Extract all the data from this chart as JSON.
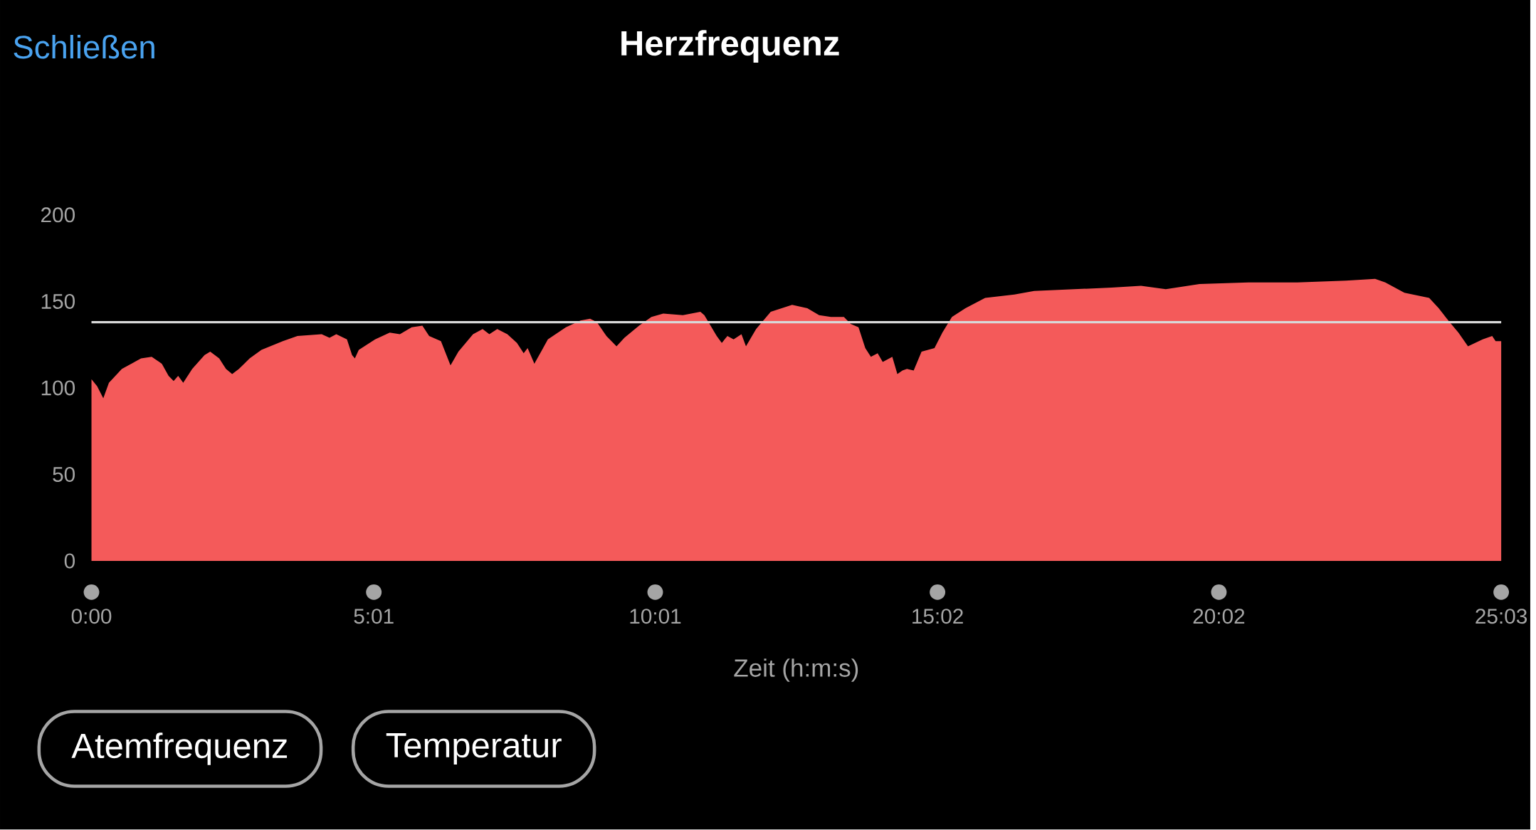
{
  "chart_data": {
    "type": "area",
    "title": "Herzfrequenz",
    "xlabel": "Zeit (h:m:s)",
    "annotations": [
      "Schließen",
      "Atemfrequenz",
      "Temperatur"
    ],
    "color": "#f45a5a",
    "x": [
      0,
      0.1,
      0.21,
      0.31,
      0.54,
      0.88,
      1.07,
      1.25,
      1.37,
      1.46,
      1.54,
      1.63,
      1.79,
      2.01,
      2.11,
      2.27,
      2.39,
      2.5,
      2.62,
      2.81,
      3.02,
      3.4,
      3.66,
      4.09,
      4.23,
      4.35,
      4.54,
      4.63,
      4.68,
      4.75,
      5.04,
      5.3,
      5.48,
      5.69,
      5.88,
      6.0,
      6.21,
      6.38,
      6.52,
      6.78,
      6.95,
      7.07,
      7.21,
      7.39,
      7.56,
      7.68,
      7.75,
      7.87,
      8.11,
      8.43,
      8.69,
      8.86,
      8.98,
      9.15,
      9.33,
      9.47,
      9.73,
      9.95,
      10.16,
      10.51,
      10.82,
      10.89,
      11.11,
      11.2,
      11.3,
      11.41,
      11.55,
      11.63,
      11.81,
      12.07,
      12.45,
      12.72,
      12.93,
      13.14,
      13.37,
      13.49,
      13.63,
      13.75,
      13.85,
      13.97,
      14.06,
      14.23,
      14.32,
      14.41,
      14.49,
      14.61,
      14.75,
      14.98,
      15.12,
      15.29,
      15.53,
      15.88,
      16.4,
      16.75,
      17.44,
      18.13,
      18.65,
      19.09,
      19.69,
      20.56,
      21.43,
      22.29,
      22.81,
      22.99,
      23.33,
      23.77,
      23.94,
      24.11,
      24.29,
      24.46,
      24.72,
      24.89,
      24.95,
      25.05
    ],
    "values": [
      105,
      101,
      94,
      103,
      111,
      117,
      118,
      114,
      107,
      104,
      107,
      103,
      111,
      119,
      121,
      117,
      111,
      108,
      111,
      117,
      122,
      127,
      130,
      131,
      129,
      131,
      128,
      119,
      117,
      122,
      128,
      132,
      131,
      135,
      136,
      130,
      127,
      113,
      121,
      131,
      134,
      131,
      134,
      131,
      126,
      120,
      123,
      114,
      128,
      135,
      139,
      140,
      138,
      130,
      124,
      129,
      136,
      141,
      143,
      142,
      144,
      142,
      130,
      126,
      130,
      128,
      131,
      124,
      134,
      144,
      148,
      146,
      142,
      141,
      141,
      137,
      135,
      123,
      118,
      120,
      115,
      118,
      108,
      110,
      111,
      110,
      121,
      123,
      132,
      141,
      146,
      152,
      154,
      156,
      157,
      158,
      159,
      157,
      160,
      161,
      161,
      162,
      163,
      161,
      155,
      152,
      146,
      139,
      132,
      124,
      128,
      130,
      127,
      127
    ],
    "xlim": [
      0,
      25.05
    ],
    "ylim": [
      0,
      200
    ],
    "xticks": [
      {
        "value": 0,
        "label": "0:00"
      },
      {
        "value": 5.017,
        "label": "5:01"
      },
      {
        "value": 10.017,
        "label": "10:01"
      },
      {
        "value": 15.033,
        "label": "15:02"
      },
      {
        "value": 20.033,
        "label": "20:02"
      },
      {
        "value": 25.05,
        "label": "25:03"
      }
    ],
    "yticks": [
      0,
      50,
      100,
      150,
      200
    ],
    "ref_lines": [
      {
        "axis": "y",
        "value": 138,
        "color": "#d8d8d8"
      }
    ]
  }
}
